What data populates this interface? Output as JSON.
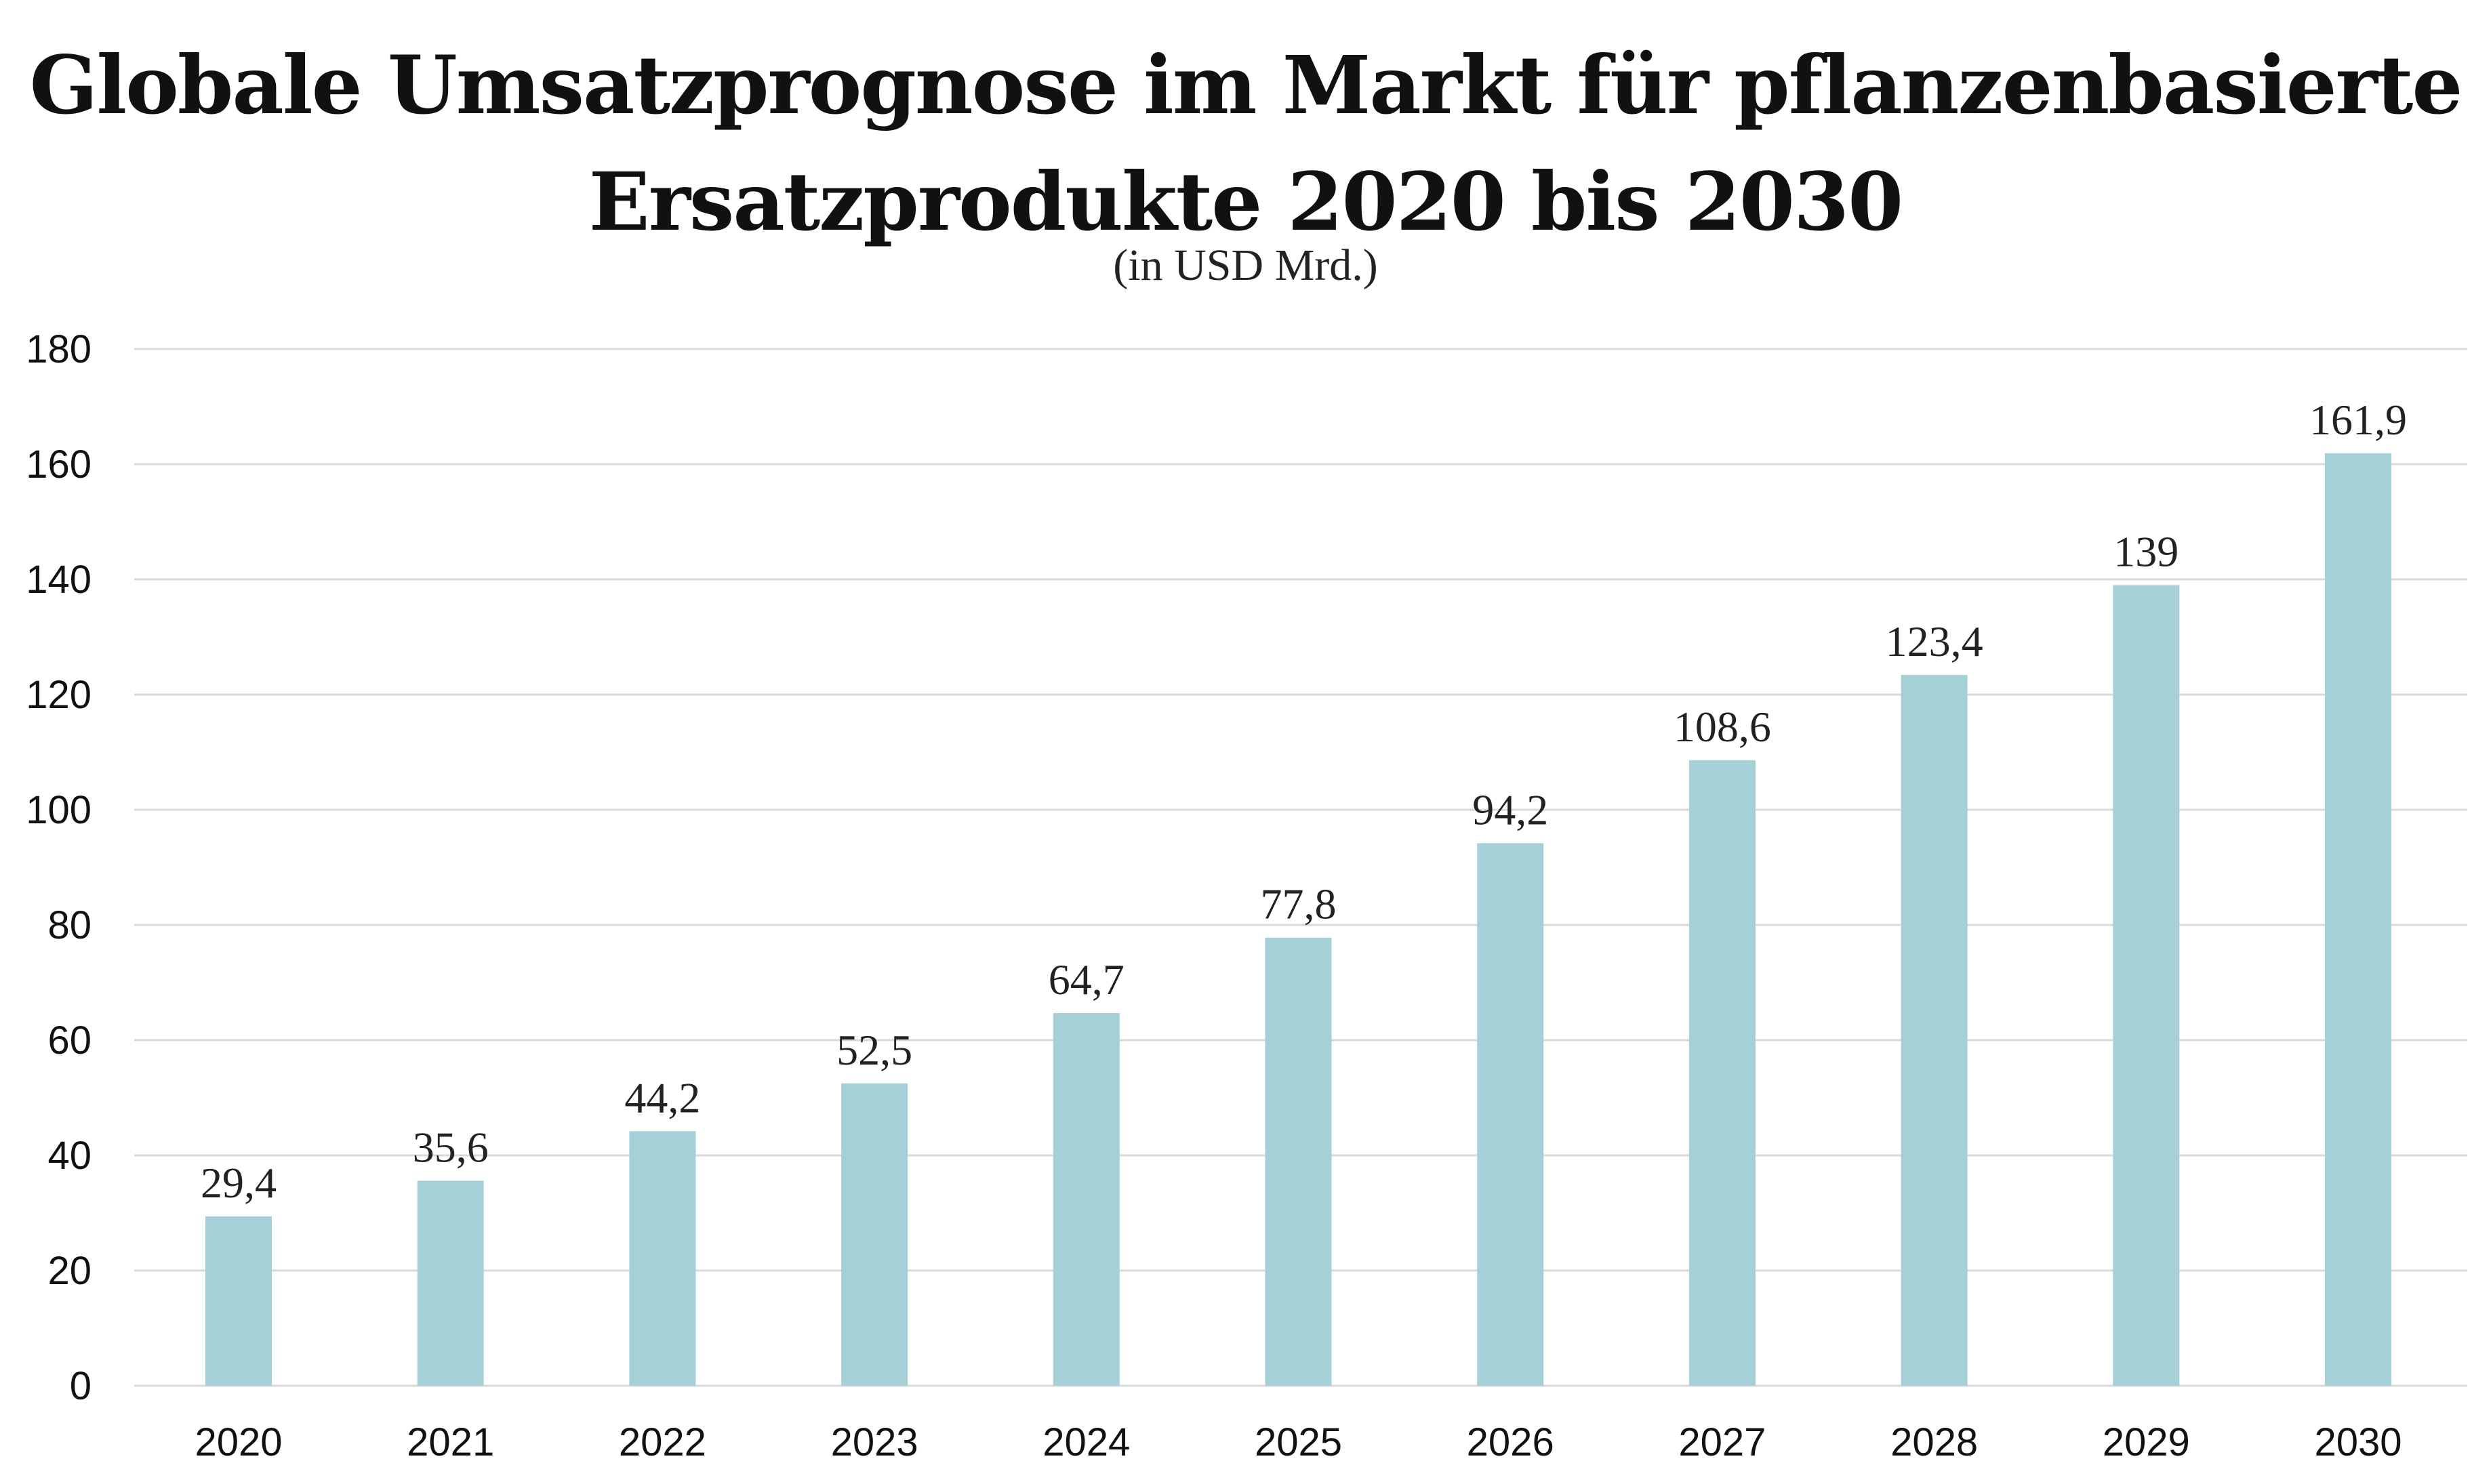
{
  "chart_data": {
    "type": "bar",
    "title_lines": [
      "Globale Umsatzprognose im Markt für pflanzenbasierte",
      "Ersatzprodukte 2020 bis 2030"
    ],
    "subtitle": "(in USD Mrd.)",
    "xlabel": "",
    "ylabel": "",
    "categories": [
      "2020",
      "2021",
      "2022",
      "2023",
      "2024",
      "2025",
      "2026",
      "2027",
      "2028",
      "2029",
      "2030"
    ],
    "values": [
      29.4,
      35.6,
      44.2,
      52.5,
      64.7,
      77.8,
      94.2,
      108.6,
      123.4,
      139,
      161.9
    ],
    "data_labels": [
      "29,4",
      "35,6",
      "44,2",
      "52,5",
      "64,7",
      "77,8",
      "94,2",
      "108,6",
      "123,4",
      "139",
      "161,9"
    ],
    "ylim": [
      0,
      180
    ],
    "yticks": [
      "0",
      "20",
      "40",
      "60",
      "80",
      "100",
      "120",
      "140",
      "160",
      "180"
    ],
    "grid": true,
    "legend": "none",
    "bar_color": "#a6d0d8"
  }
}
